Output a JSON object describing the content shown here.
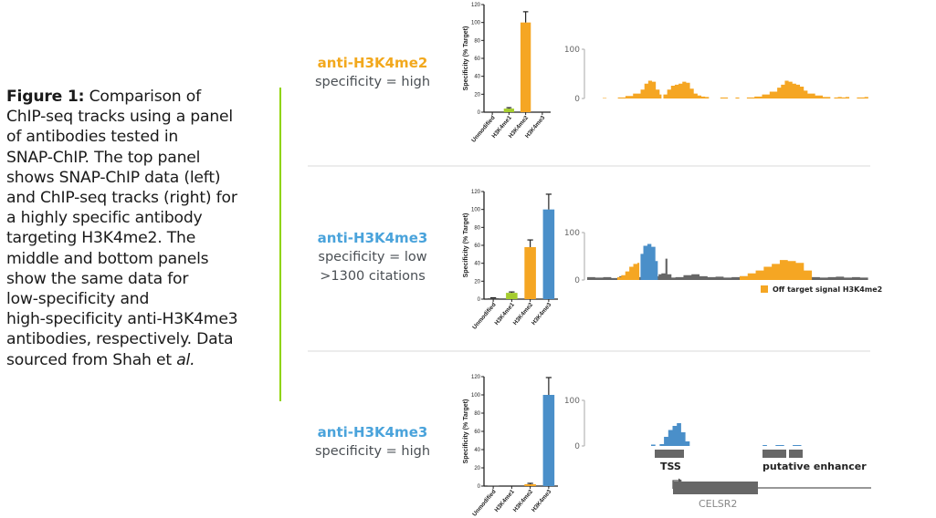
{
  "caption": {
    "bold": "Figure 1:",
    "text_lines": [
      " Comparison of",
      "ChIP-seq tracks using a panel",
      "of antibodies tested in",
      "SNAP-ChIP. The top panel",
      "shows SNAP-ChIP data (left)",
      "and ChIP-seq tracks (right) for",
      "a highly specific antibody",
      "targeting H3K4me2. The",
      "middle and bottom panels",
      "show the same data for",
      "low-specificity and",
      "high-specificity anti-H3K4me3",
      "antibodies, respectively. Data",
      "sourced from Shah et "
    ],
    "italic_tail": "al."
  },
  "colors": {
    "h3k4me2": "#f5a623",
    "h3k4me3": "#4a8fc9",
    "h3k4me1": "#a5cc2e",
    "unmodified": "#555555",
    "background_signal": "#666666",
    "accent_bar": "#8fd400",
    "label_me2": "#f2a81d",
    "label_me3": "#4aa3db"
  },
  "panels": [
    {
      "antibody": "anti-H3K4me2",
      "lines": [
        "specificity = high"
      ],
      "antibody_color_key": "label_me2"
    },
    {
      "antibody": "anti-H3K4me3",
      "lines": [
        "specificity = low",
        ">1300 citations"
      ],
      "antibody_color_key": "label_me3"
    },
    {
      "antibody": "anti-H3K4me3",
      "lines": [
        "specificity = high"
      ],
      "antibody_color_key": "label_me3"
    }
  ],
  "track_legend": "Off target signal H3K4me2",
  "track_annotations": {
    "tss": "TSS",
    "enhancer": "putative enhancer",
    "gene": "CELSR2"
  },
  "chart_data": [
    {
      "type": "bar",
      "title": "",
      "xlabel": "",
      "ylabel": "Specificity (% Target)",
      "ylim": [
        0,
        120
      ],
      "yticks": [
        0,
        20,
        40,
        60,
        80,
        100,
        120
      ],
      "categories": [
        "Unmodified",
        "H3K4me1",
        "H3K4me2",
        "H3K4me3"
      ],
      "values": [
        0,
        4,
        100,
        0
      ],
      "errors": [
        0,
        1,
        12,
        0
      ],
      "bar_colors": [
        "unmodified",
        "h3k4me1",
        "h3k4me2",
        "h3k4me3"
      ]
    },
    {
      "type": "area",
      "title": "ChIP-seq track anti-H3K4me2 (high specificity)",
      "ylim": [
        0,
        100
      ],
      "yticks": [
        0,
        100
      ],
      "segments": [
        {
          "color": "h3k4me2",
          "x": [
            0,
            1
          ],
          "y": [
            1,
            1
          ]
        },
        {
          "color": "h3k4me2",
          "x": [
            4,
            6,
            8,
            10,
            11,
            12,
            13,
            14,
            15,
            15.5
          ],
          "y": [
            2,
            5,
            10,
            18,
            30,
            36,
            34,
            18,
            8,
            4
          ]
        },
        {
          "color": "h3k4me2",
          "x": [
            16,
            17,
            18,
            19,
            20,
            21,
            22,
            23,
            24,
            25,
            26,
            27,
            28
          ],
          "y": [
            8,
            18,
            26,
            28,
            30,
            34,
            32,
            20,
            10,
            6,
            4,
            3,
            2
          ]
        },
        {
          "color": "h3k4me2",
          "x": [
            31,
            33
          ],
          "y": [
            2,
            2
          ]
        },
        {
          "color": "h3k4me2",
          "x": [
            35,
            36
          ],
          "y": [
            2,
            2
          ]
        },
        {
          "color": "h3k4me2",
          "x": [
            38,
            40,
            42,
            44,
            46,
            47,
            48,
            49,
            50,
            51,
            52,
            53,
            54,
            56,
            58,
            60
          ],
          "y": [
            2,
            4,
            8,
            14,
            22,
            28,
            36,
            34,
            30,
            28,
            24,
            16,
            10,
            6,
            3,
            2
          ]
        },
        {
          "color": "h3k4me2",
          "x": [
            61,
            62,
            63,
            64,
            65
          ],
          "y": [
            2,
            3,
            2,
            3,
            2
          ]
        },
        {
          "color": "h3k4me2",
          "x": [
            67,
            68,
            69,
            70
          ],
          "y": [
            2,
            2,
            3,
            2
          ]
        }
      ]
    },
    {
      "type": "bar",
      "title": "",
      "xlabel": "",
      "ylabel": "Specificity (% Target)",
      "ylim": [
        0,
        120
      ],
      "yticks": [
        0,
        20,
        40,
        60,
        80,
        100,
        120
      ],
      "categories": [
        "Unmodified",
        "H3K4me1",
        "H3K4me2",
        "H3K4me3"
      ],
      "values": [
        1,
        7,
        58,
        100
      ],
      "errors": [
        0.5,
        1,
        8,
        17
      ],
      "bar_colors": [
        "unmodified",
        "h3k4me1",
        "h3k4me2",
        "h3k4me3"
      ]
    },
    {
      "type": "area",
      "title": "ChIP-seq track anti-H3K4me3 (low specificity)",
      "ylim": [
        0,
        100
      ],
      "yticks": [
        0,
        100
      ],
      "legend": "bottom-right",
      "segments": [
        {
          "color": "background_signal",
          "x": [
            0,
            2,
            4,
            6,
            8,
            10,
            12,
            14,
            16,
            18,
            20,
            22,
            24,
            26,
            28,
            30,
            32,
            34,
            36,
            38,
            40,
            42,
            44,
            46,
            48,
            50,
            52,
            54,
            56,
            58,
            60,
            62,
            64,
            66,
            68,
            70
          ],
          "y": [
            6,
            5,
            6,
            4,
            8,
            10,
            6,
            5,
            8,
            6,
            5,
            6,
            10,
            12,
            8,
            6,
            7,
            5,
            6,
            8,
            6,
            5,
            7,
            6,
            5,
            6,
            5,
            7,
            6,
            5,
            6,
            7,
            5,
            6,
            5,
            5
          ]
        },
        {
          "color": "h3k4me2",
          "x": [
            7.5,
            8.5,
            9.5,
            10.5,
            11.5,
            12.5,
            13
          ],
          "y": [
            6,
            10,
            18,
            28,
            34,
            36,
            36
          ]
        },
        {
          "color": "h3k4me3",
          "x": [
            13.3,
            14,
            15,
            16,
            17,
            17.6
          ],
          "y": [
            55,
            72,
            76,
            70,
            40,
            30
          ]
        },
        {
          "color": "background_signal",
          "x": [
            17.8,
            18.5,
            19.5,
            20,
            21
          ],
          "y": [
            12,
            14,
            45,
            12,
            8
          ]
        },
        {
          "color": "h3k4me2",
          "x": [
            38,
            40,
            42,
            44,
            46,
            48,
            50,
            52,
            54,
            56
          ],
          "y": [
            8,
            14,
            20,
            28,
            34,
            42,
            40,
            36,
            20,
            10
          ]
        }
      ]
    },
    {
      "type": "bar",
      "title": "",
      "xlabel": "",
      "ylabel": "Specificity (% Target)",
      "ylim": [
        0,
        120
      ],
      "yticks": [
        0,
        20,
        40,
        60,
        80,
        100,
        120
      ],
      "categories": [
        "Unmodified",
        "H3K4me1",
        "H3K4me2",
        "H3K4me3"
      ],
      "values": [
        0.5,
        0,
        2,
        100
      ],
      "errors": [
        0,
        0,
        1,
        19
      ],
      "bar_colors": [
        "unmodified",
        "h3k4me1",
        "h3k4me2",
        "h3k4me3"
      ]
    },
    {
      "type": "area",
      "title": "ChIP-seq track anti-H3K4me3 (high specificity)",
      "ylim": [
        0,
        100
      ],
      "yticks": [
        0,
        100
      ],
      "segments": [
        {
          "color": "h3k4me3",
          "x": [
            0,
            1
          ],
          "y": [
            3,
            3
          ]
        },
        {
          "color": "h3k4me3",
          "x": [
            2,
            3,
            4,
            5,
            6,
            7,
            8,
            9
          ],
          "y": [
            4,
            20,
            35,
            44,
            50,
            30,
            10,
            2
          ]
        },
        {
          "color": "h3k4me3",
          "x": [
            26,
            27
          ],
          "y": [
            2,
            2
          ]
        },
        {
          "color": "h3k4me3",
          "x": [
            29,
            31
          ],
          "y": [
            2,
            2
          ]
        },
        {
          "color": "h3k4me3",
          "x": [
            33,
            35
          ],
          "y": [
            2,
            2
          ]
        }
      ]
    }
  ]
}
